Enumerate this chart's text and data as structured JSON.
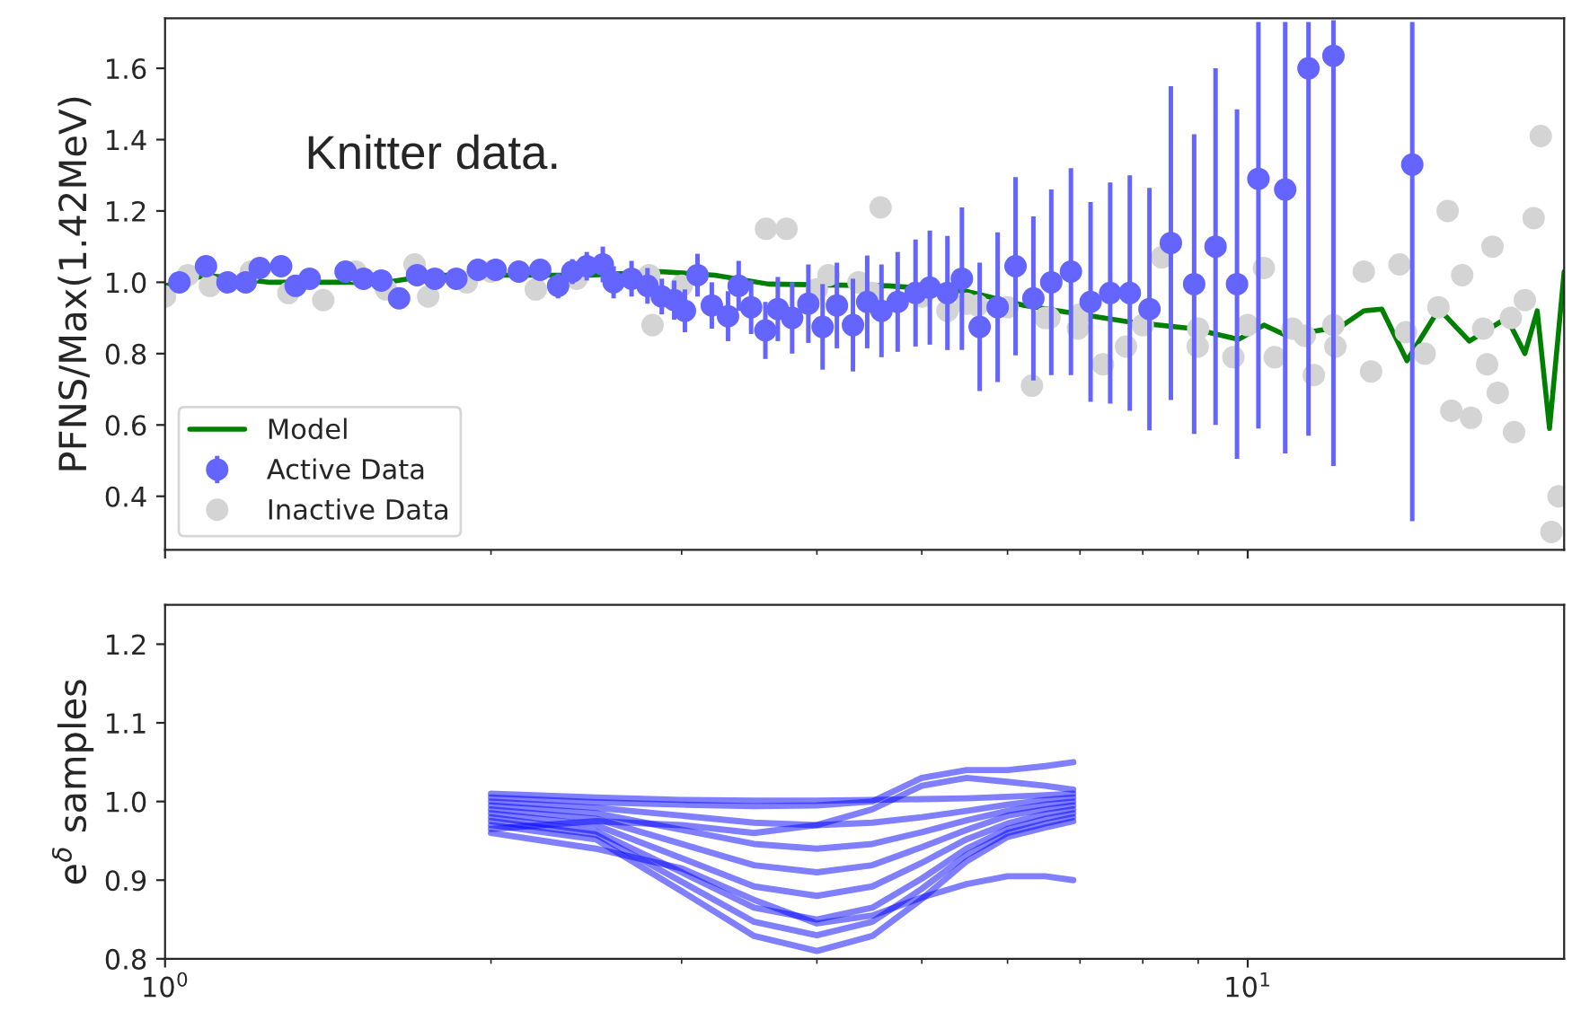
{
  "chart_data": [
    {
      "type": "line",
      "ylabel": "PFNS/Max(1.42MeV)",
      "annotations": [
        "Knitter data."
      ],
      "log": "x",
      "grid": false,
      "legend": "bottom left",
      "tick_labels": "y",
      "xlim": [
        1,
        19.6
      ],
      "xticks": [
        1,
        {
          "value": 2,
          "label": null
        },
        {
          "value": 3,
          "label": null
        },
        {
          "value": 4,
          "label": null
        },
        {
          "value": 5,
          "label": null
        },
        {
          "value": 6,
          "label": null
        },
        {
          "value": 7,
          "label": null
        },
        {
          "value": 8,
          "label": null
        },
        {
          "value": 9,
          "label": null
        },
        10
      ],
      "ylim": [
        0.25,
        1.74
      ],
      "yticks": [
        0.4,
        0.6,
        0.8,
        {
          "value": 1,
          "label": "1.0"
        },
        1.2,
        1.4,
        1.6
      ],
      "series": [
        {
          "name": "Inactive Data",
          "type": "scatter",
          "marker": "circle",
          "color": "#d4d4d4",
          "x": [
            1.0,
            1.05,
            1.1,
            1.2,
            1.3,
            1.4,
            1.5,
            1.6,
            1.7,
            1.75,
            1.9,
            2.0,
            2.2,
            2.4,
            2.8,
            2.82,
            3.0,
            3.59,
            3.75,
            4.0,
            4.1,
            4.37,
            4.5,
            4.58,
            5.0,
            5.28,
            5.5,
            5.63,
            6.0,
            6.32,
            6.5,
            6.56,
            6.97,
            7.0,
            7.35,
            7.72,
            8.0,
            8.33,
            8.99,
            9.0,
            9.7,
            10.0,
            10.35,
            10.59,
            11.0,
            11.29,
            11.51,
            12.0,
            12.05,
            12.8,
            13.0,
            13.81,
            14.0,
            14.57,
            15.0,
            15.3,
            15.42,
            15.78,
            16.08,
            16.5,
            16.64,
            16.83,
            17.02,
            17.5,
            17.62,
            18.03,
            18.37,
            18.65,
            19.08,
            19.37
          ],
          "values": [
            0.96,
            1.02,
            0.99,
            1.03,
            0.97,
            0.95,
            1.03,
            0.98,
            1.05,
            0.96,
            1.0,
            1.03,
            0.98,
            1.01,
            1.02,
            0.88,
            0.99,
            1.15,
            1.15,
            0.98,
            1.02,
            1.0,
            0.97,
            1.21,
            0.96,
            0.92,
            0.94,
            0.935,
            0.93,
            0.71,
            0.9,
            0.9,
            0.87,
            0.91,
            0.77,
            0.82,
            0.88,
            1.07,
            0.82,
            0.87,
            0.79,
            0.88,
            1.04,
            0.79,
            0.87,
            0.85,
            0.74,
            0.88,
            0.82,
            1.03,
            0.75,
            1.05,
            0.86,
            0.8,
            0.93,
            1.2,
            0.64,
            1.02,
            0.62,
            0.87,
            0.77,
            1.1,
            0.69,
            0.9,
            0.58,
            0.95,
            1.18,
            1.41,
            0.3,
            0.4
          ]
        },
        {
          "name": "Active Data",
          "type": "scatter",
          "marker": "circle",
          "color": "#6464ff",
          "x": [
            1.031,
            1.091,
            1.142,
            1.187,
            1.223,
            1.28,
            1.32,
            1.36,
            1.468,
            1.525,
            1.584,
            1.645,
            1.709,
            1.775,
            1.858,
            1.945,
            2.02,
            2.122,
            2.221,
            2.307,
            2.378,
            2.452,
            2.537,
            2.596,
            2.697,
            2.79,
            2.876,
            2.953,
            3.021,
            3.103,
            3.199,
            3.311,
            3.387,
            3.478,
            3.585,
            3.681,
            3.795,
            3.928,
            4.049,
            4.174,
            4.319,
            4.452,
            4.589,
            4.75,
            4.934,
            5.086,
            5.28,
            5.445,
            5.655,
            5.875,
            6.103,
            6.339,
            6.585,
            6.866,
            7.159,
            7.464,
            7.782,
            8.114,
            8.492,
            8.923,
            9.339,
            9.775,
            10.23,
            10.83,
            11.38,
            12.0,
            14.19
          ],
          "values": [
            1.0,
            1.045,
            1.0,
            1.0,
            1.04,
            1.045,
            0.99,
            1.01,
            1.03,
            1.01,
            1.005,
            0.955,
            1.02,
            1.01,
            1.01,
            1.035,
            1.035,
            1.03,
            1.035,
            0.99,
            1.03,
            1.045,
            1.05,
            1.0,
            1.01,
            0.99,
            0.96,
            0.95,
            0.92,
            1.02,
            0.935,
            0.905,
            0.99,
            0.93,
            0.865,
            0.925,
            0.9,
            0.94,
            0.875,
            0.935,
            0.88,
            0.945,
            0.92,
            0.945,
            0.97,
            0.985,
            0.97,
            1.01,
            0.875,
            0.93,
            1.045,
            0.955,
            1.0,
            1.03,
            0.945,
            0.97,
            0.97,
            0.925,
            1.11,
            0.995,
            1.1,
            0.995,
            1.29,
            1.26,
            1.6,
            1.635,
            1.33
          ],
          "errors": [
            0.02,
            0.02,
            0.02,
            0.02,
            0.02,
            0.02,
            0.02,
            0.02,
            0.02,
            0.02,
            0.02,
            0.025,
            0.025,
            0.025,
            0.025,
            0.03,
            0.03,
            0.03,
            0.03,
            0.035,
            0.035,
            0.04,
            0.05,
            0.045,
            0.05,
            0.05,
            0.05,
            0.055,
            0.06,
            0.06,
            0.065,
            0.07,
            0.07,
            0.075,
            0.08,
            0.09,
            0.1,
            0.11,
            0.12,
            0.12,
            0.13,
            0.13,
            0.13,
            0.14,
            0.15,
            0.16,
            0.16,
            0.2,
            0.18,
            0.21,
            0.25,
            0.23,
            0.26,
            0.29,
            0.28,
            0.31,
            0.33,
            0.34,
            0.44,
            0.42,
            0.5,
            0.49,
            [
              0.59,
              1.73
            ],
            [
              0.52,
              1.73
            ],
            [
              0.57,
              1.73
            ],
            [
              0.485,
              1.735
            ],
            [
              0.33,
              1.73
            ]
          ]
        },
        {
          "name": "Model",
          "type": "line",
          "color": "#008000",
          "x": [
            1.0,
            1.09,
            1.25,
            1.6,
            1.76,
            2.2,
            2.47,
            2.87,
            3.22,
            3.61,
            4.66,
            5.49,
            6.22,
            7.72,
            8.89,
            9.81,
            10.35,
            10.87,
            12.18,
            12.8,
            13.3,
            14.03,
            15.02,
            16.02,
            17.35,
            18.03,
            18.51,
            19.0,
            19.6
          ],
          "values": [
            0.99,
            1.02,
            1.0,
            1.0,
            1.02,
            1.02,
            1.02,
            1.03,
            1.02,
            0.995,
            0.99,
            0.975,
            0.935,
            0.89,
            0.87,
            0.84,
            0.88,
            0.85,
            0.875,
            0.92,
            0.925,
            0.78,
            0.925,
            0.835,
            0.9,
            0.8,
            0.92,
            0.59,
            1.03
          ]
        }
      ]
    },
    {
      "type": "line",
      "ylabel": "e$^{δ}$ samples",
      "log": "x",
      "grid": false,
      "xlim": [
        1,
        19.6
      ],
      "xticks": [
        {
          "value": 1,
          "label": "10$^{0}$"
        },
        {
          "value": 2,
          "label": null
        },
        {
          "value": 3,
          "label": null
        },
        {
          "value": 4,
          "label": null
        },
        {
          "value": 5,
          "label": null
        },
        {
          "value": 6,
          "label": null
        },
        {
          "value": 7,
          "label": null
        },
        {
          "value": 8,
          "label": null
        },
        {
          "value": 9,
          "label": null
        },
        {
          "value": 10,
          "label": "10$^{1}$"
        }
      ],
      "ylim": [
        0.8,
        1.25
      ],
      "yticks": [
        0.8,
        0.9,
        {
          "value": 1,
          "label": "1.0"
        },
        1.1,
        1.2
      ],
      "x": [
        2.0,
        2.5,
        3.0,
        3.5,
        4.0,
        4.5,
        5.0,
        5.5,
        6.0,
        6.5,
        6.9
      ],
      "series": [
        {
          "color": "#0000ff",
          "values": [
            1.01,
            1.005,
            1.002,
            1.001,
            1.001,
            1.002,
            1.003,
            1.004,
            1.006,
            1.008,
            1.01
          ]
        },
        {
          "color": "#0000ff",
          "values": [
            1.0,
            0.992,
            0.982,
            0.973,
            0.97,
            0.973,
            0.98,
            0.988,
            0.996,
            1.002,
            1.005
          ]
        },
        {
          "color": "#0000ff",
          "values": [
            0.995,
            0.985,
            0.964,
            0.946,
            0.94,
            0.946,
            0.961,
            0.976,
            0.988,
            0.996,
            1.0
          ]
        },
        {
          "color": "#0000ff",
          "values": [
            0.99,
            0.978,
            0.946,
            0.919,
            0.91,
            0.919,
            0.942,
            0.964,
            0.982,
            0.99,
            0.995
          ]
        },
        {
          "color": "#0000ff",
          "values": [
            0.985,
            0.97,
            0.928,
            0.892,
            0.88,
            0.892,
            0.922,
            0.952,
            0.972,
            0.984,
            0.99
          ]
        },
        {
          "color": "#0000ff",
          "values": [
            0.98,
            0.962,
            0.91,
            0.865,
            0.85,
            0.865,
            0.902,
            0.94,
            0.965,
            0.978,
            0.985
          ]
        },
        {
          "color": "#0000ff",
          "values": [
            0.975,
            0.958,
            0.898,
            0.847,
            0.83,
            0.847,
            0.889,
            0.932,
            0.96,
            0.972,
            0.98
          ]
        },
        {
          "color": "#0000ff",
          "values": [
            0.97,
            0.952,
            0.886,
            0.829,
            0.81,
            0.829,
            0.876,
            0.924,
            0.955,
            0.967,
            0.975
          ]
        },
        {
          "color": "#0000ff",
          "values": [
            1.005,
            0.999,
            0.996,
            0.994,
            0.995,
            1.0,
            1.03,
            1.04,
            1.04,
            1.045,
            1.05
          ]
        },
        {
          "color": "#0000ff",
          "values": [
            0.965,
            0.975,
            0.97,
            0.96,
            0.97,
            0.99,
            1.02,
            1.03,
            1.025,
            1.02,
            1.015
          ]
        },
        {
          "color": "#0000ff",
          "values": [
            0.96,
            0.94,
            0.915,
            0.875,
            0.845,
            0.855,
            0.878,
            0.895,
            0.905,
            0.905,
            0.9
          ]
        }
      ]
    }
  ]
}
